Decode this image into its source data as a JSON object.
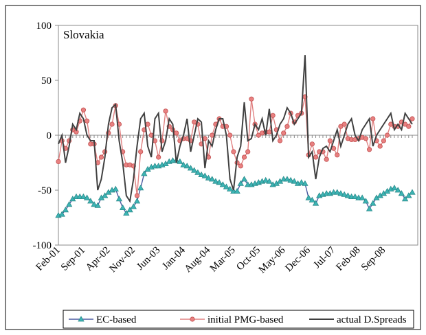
{
  "chart_data": {
    "type": "line",
    "title": "Slovakia",
    "categories": [
      "Feb-01",
      null,
      null,
      null,
      null,
      null,
      null,
      "Sep-01",
      null,
      null,
      null,
      null,
      null,
      null,
      "Apr-02",
      null,
      null,
      null,
      null,
      null,
      null,
      "Nov-02",
      null,
      null,
      null,
      null,
      null,
      null,
      "Jun-03",
      null,
      null,
      null,
      null,
      null,
      null,
      "Jan-04",
      null,
      null,
      null,
      null,
      null,
      null,
      "Aug-04",
      null,
      null,
      null,
      null,
      null,
      null,
      "Mar-05",
      null,
      null,
      null,
      null,
      null,
      null,
      "Oct-05",
      null,
      null,
      null,
      null,
      null,
      null,
      "May-06",
      null,
      null,
      null,
      null,
      null,
      null,
      "Dec-06",
      null,
      null,
      null,
      null,
      null,
      null,
      "Jul-07",
      null,
      null,
      null,
      null,
      null,
      null,
      "Feb-08",
      null,
      null,
      null,
      null,
      null,
      null,
      "Sep-08",
      null,
      null,
      null,
      null,
      null,
      null,
      null,
      null
    ],
    "series": [
      {
        "name": "EC-based",
        "color": "#4a5aa0",
        "marker": "triangle",
        "marker_color": "#3cb4b4",
        "values": [
          -73,
          -72,
          -68,
          -63,
          -58,
          -56,
          -56,
          -56,
          -57,
          -60,
          -63,
          -64,
          -57,
          -55,
          -52,
          -50,
          -49,
          -58,
          -66,
          -71,
          -68,
          -65,
          -60,
          -48,
          -35,
          -31,
          -29,
          -28,
          -28,
          -27,
          -26,
          -24,
          -23,
          -23,
          -24,
          -27,
          -28,
          -30,
          -32,
          -34,
          -36,
          -37,
          -39,
          -40,
          -42,
          -43,
          -45,
          -47,
          -49,
          -51,
          -51,
          -44,
          -40,
          -45,
          -45,
          -44,
          -43,
          -42,
          -41,
          -42,
          -45,
          -44,
          -42,
          -40,
          -40,
          -41,
          -42,
          -44,
          -43,
          -44,
          -57,
          -59,
          -62,
          -55,
          -54,
          -53,
          -53,
          -52,
          -52,
          -53,
          -54,
          -55,
          -56,
          -56,
          -57,
          -57,
          -60,
          -67,
          -62,
          -57,
          -55,
          -53,
          -51,
          -49,
          -48,
          -50,
          -53,
          -58,
          -55,
          -52
        ]
      },
      {
        "name": "initial PMG-based",
        "color": "#e08080",
        "marker": "circle",
        "marker_color": "#e88080",
        "values": [
          -24,
          -5,
          -12,
          -5,
          5,
          3,
          13,
          23,
          13,
          -8,
          -8,
          -25,
          -20,
          -15,
          2,
          10,
          27,
          10,
          -15,
          -27,
          -27,
          -28,
          -55,
          -15,
          5,
          10,
          0,
          -5,
          -20,
          -5,
          22,
          8,
          5,
          2,
          -5,
          -3,
          -3,
          -5,
          12,
          10,
          -8,
          -3,
          -20,
          0,
          10,
          15,
          8,
          8,
          0,
          -15,
          -25,
          -28,
          -20,
          -15,
          33,
          10,
          0,
          2,
          3,
          3,
          18,
          5,
          -5,
          2,
          8,
          20,
          12,
          18,
          20,
          35,
          -18,
          -8,
          -20,
          -15,
          -15,
          -22,
          -5,
          -12,
          -18,
          8,
          10,
          -3,
          -4,
          -4,
          -3,
          -2,
          -3,
          -13,
          15,
          -5,
          -10,
          -5,
          0,
          10,
          8,
          8,
          12,
          10,
          8,
          15
        ]
      },
      {
        "name": "actual D.Spreads",
        "color": "#404040",
        "values": [
          -8,
          0,
          -25,
          -10,
          10,
          5,
          20,
          15,
          0,
          -5,
          -5,
          -50,
          -40,
          -20,
          10,
          25,
          28,
          -5,
          -25,
          -55,
          -60,
          -40,
          -10,
          15,
          20,
          -10,
          -20,
          15,
          20,
          -15,
          -5,
          15,
          10,
          -25,
          -10,
          0,
          15,
          -15,
          0,
          15,
          12,
          -30,
          -5,
          -10,
          5,
          15,
          15,
          0,
          -40,
          -50,
          -20,
          -10,
          30,
          -5,
          -3,
          10,
          5,
          15,
          0,
          24,
          -5,
          0,
          10,
          15,
          25,
          20,
          10,
          15,
          20,
          73,
          -20,
          -15,
          -40,
          -20,
          -12,
          -10,
          -15,
          -5,
          5,
          -10,
          0,
          10,
          15,
          0,
          -5,
          5,
          10,
          15,
          -10,
          0,
          5,
          10,
          15,
          20,
          5,
          10,
          5,
          20,
          15,
          10
        ]
      }
    ],
    "ylim": [
      -100,
      100
    ],
    "yticks": [
      -100,
      -50,
      0,
      50,
      100
    ],
    "legend": "bottom"
  }
}
